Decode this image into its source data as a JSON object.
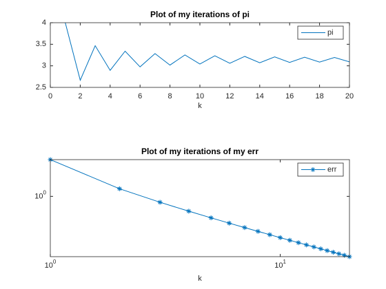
{
  "chart_data": [
    {
      "type": "line",
      "title": "Plot of my iterations of pi",
      "xlabel": "k",
      "x": [
        1,
        2,
        3,
        4,
        5,
        6,
        7,
        8,
        9,
        10,
        11,
        12,
        13,
        14,
        15,
        16,
        17,
        18,
        19,
        20
      ],
      "series": [
        {
          "name": "pi",
          "color": "#0072bd",
          "marker": null,
          "values": [
            4,
            2.6667,
            3.4667,
            2.8952,
            3.3397,
            2.976,
            3.2837,
            3.0171,
            3.2524,
            3.0418,
            3.2323,
            3.0584,
            3.2184,
            3.0703,
            3.2082,
            3.0792,
            3.2004,
            3.0861,
            3.1941,
            3.0916
          ]
        }
      ],
      "xlim": [
        0,
        20
      ],
      "xticks": [
        0,
        2,
        4,
        6,
        8,
        10,
        12,
        14,
        16,
        18,
        20
      ],
      "ylim": [
        2.5,
        4
      ],
      "yticks": [
        2.5,
        3,
        3.5,
        4
      ],
      "legend": "upper right",
      "xscale": "linear",
      "yscale": "linear"
    },
    {
      "type": "line",
      "title": "Plot of my iterations of my err",
      "xlabel": "k",
      "x": [
        1,
        2,
        3,
        4,
        5,
        6,
        7,
        8,
        9,
        10,
        11,
        12,
        13,
        14,
        15,
        16,
        17,
        18,
        19,
        20
      ],
      "series": [
        {
          "name": "err",
          "color": "#0072bd",
          "marker": "asterisk",
          "values": [
            4,
            1.3333,
            0.8,
            0.5714,
            0.4444,
            0.3636,
            0.3077,
            0.2667,
            0.2353,
            0.2105,
            0.1905,
            0.1739,
            0.16,
            0.1481,
            0.1379,
            0.129,
            0.1212,
            0.1143,
            0.1081,
            0.1026
          ]
        }
      ],
      "xlim": [
        1,
        20
      ],
      "xticks": [
        {
          "value": 1,
          "label": "10^0"
        },
        {
          "value": 10,
          "label": "10^1"
        }
      ],
      "ylim": [
        0.1026,
        4
      ],
      "yticks": [
        {
          "value": 1,
          "label": "10^0"
        }
      ],
      "legend": "upper right",
      "xscale": "log",
      "yscale": "log"
    }
  ]
}
